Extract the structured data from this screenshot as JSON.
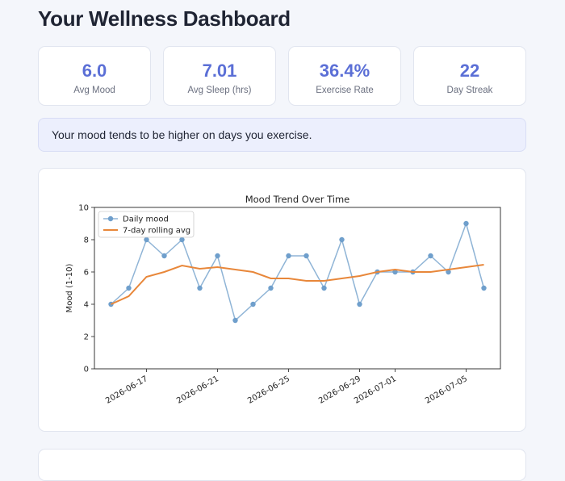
{
  "page": {
    "title": "Your Wellness Dashboard"
  },
  "stats": [
    {
      "value": "6.0",
      "label": "Avg Mood"
    },
    {
      "value": "7.01",
      "label": "Avg Sleep (hrs)"
    },
    {
      "value": "36.4%",
      "label": "Exercise Rate"
    },
    {
      "value": "22",
      "label": "Day Streak"
    }
  ],
  "insight": {
    "text": "Your mood tends to be higher on days you exercise."
  },
  "colors": {
    "accent": "#5b6fd6",
    "daily": "#8fb4d6",
    "daily_point": "#6f9fcc",
    "rolling": "#e8873a"
  },
  "chart_data": {
    "type": "line",
    "title": "Mood Trend Over Time",
    "xlabel": "",
    "ylabel": "Mood (1-10)",
    "ylim": [
      0,
      10
    ],
    "yticks": [
      0,
      2,
      4,
      6,
      8,
      10
    ],
    "x": [
      "2026-06-15",
      "2026-06-16",
      "2026-06-17",
      "2026-06-18",
      "2026-06-19",
      "2026-06-20",
      "2026-06-21",
      "2026-06-22",
      "2026-06-23",
      "2026-06-24",
      "2026-06-25",
      "2026-06-26",
      "2026-06-27",
      "2026-06-28",
      "2026-06-29",
      "2026-06-30",
      "2026-07-01",
      "2026-07-02",
      "2026-07-03",
      "2026-07-04",
      "2026-07-05",
      "2026-07-06"
    ],
    "xticks": [
      "2026-06-17",
      "2026-06-21",
      "2026-06-25",
      "2026-06-29",
      "2026-07-01",
      "2026-07-05"
    ],
    "legend_position": "top-left",
    "grid": false,
    "series": [
      {
        "name": "Daily mood",
        "values": [
          4,
          5,
          8,
          7,
          8,
          5,
          7,
          3,
          4,
          5,
          7,
          7,
          5,
          8,
          4,
          6,
          6,
          6,
          7,
          6,
          9,
          5
        ]
      },
      {
        "name": "7-day rolling avg",
        "values": [
          4.0,
          4.5,
          5.7,
          6.0,
          6.4,
          6.2,
          6.3,
          6.15,
          6.0,
          5.6,
          5.6,
          5.45,
          5.45,
          5.6,
          5.75,
          6.0,
          6.15,
          6.0,
          6.0,
          6.15,
          6.3,
          6.45
        ]
      }
    ]
  }
}
